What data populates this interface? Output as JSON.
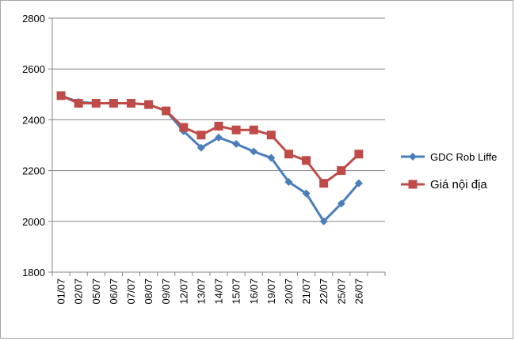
{
  "chart_data": {
    "type": "line",
    "title": "",
    "xlabel": "",
    "ylabel": "",
    "categories": [
      "01/07",
      "02/07",
      "05/07",
      "06/07",
      "07/07",
      "08/07",
      "09/07",
      "12/07",
      "13/07",
      "14/07",
      "15/07",
      "16/07",
      "19/07",
      "20/07",
      "21/07",
      "22/07",
      "25/07",
      "26/07"
    ],
    "ylim": [
      1800,
      2800
    ],
    "yticks": [
      1800,
      2000,
      2200,
      2400,
      2600,
      2800
    ],
    "grid": "horizontal",
    "legend": "right",
    "series": [
      {
        "name": "GDC Rob Liffe",
        "color": "#4a7ebb",
        "marker": "diamond",
        "values": [
          2495,
          2470,
          2465,
          2465,
          2465,
          2460,
          2435,
          2355,
          2290,
          2330,
          2305,
          2275,
          2250,
          2155,
          2110,
          2000,
          2070,
          2150
        ]
      },
      {
        "name": "Giá nội địa",
        "color": "#be4b48",
        "marker": "square",
        "values": [
          2495,
          2465,
          2465,
          2465,
          2465,
          2460,
          2435,
          2370,
          2340,
          2375,
          2360,
          2360,
          2340,
          2265,
          2240,
          2150,
          2200,
          2265
        ]
      }
    ]
  }
}
